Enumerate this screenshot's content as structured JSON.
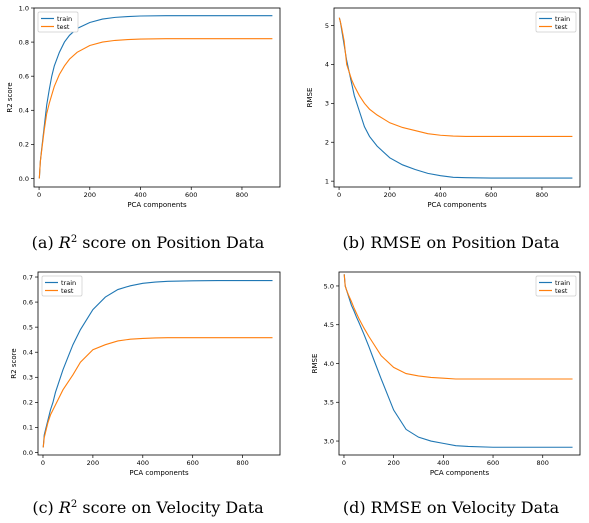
{
  "chart_data": [
    {
      "type": "line",
      "caption": {
        "prefix": "(a)",
        "italic": "R",
        "sup": "2",
        "rest": "score on Position Data"
      },
      "xlabel": "PCA components",
      "ylabel": "R2 score",
      "xlim": [
        -20,
        950
      ],
      "ylim": [
        -0.05,
        1.0
      ],
      "xticks": [
        0,
        200,
        400,
        600,
        800
      ],
      "yticks": [
        0.0,
        0.2,
        0.4,
        0.6,
        0.8,
        1.0
      ],
      "ytick_labels": [
        "0.0",
        "0.2",
        "0.4",
        "0.6",
        "0.8",
        "1.0"
      ],
      "legend": "top-left",
      "series": [
        {
          "name": "train",
          "color": "#1f77b4",
          "x": [
            1,
            5,
            10,
            20,
            30,
            40,
            50,
            60,
            80,
            100,
            120,
            150,
            200,
            250,
            300,
            350,
            400,
            500,
            600,
            700,
            800,
            920
          ],
          "y": [
            0.0,
            0.1,
            0.17,
            0.3,
            0.43,
            0.52,
            0.6,
            0.66,
            0.74,
            0.8,
            0.84,
            0.88,
            0.915,
            0.935,
            0.945,
            0.95,
            0.953,
            0.955,
            0.955,
            0.955,
            0.955,
            0.955
          ]
        },
        {
          "name": "test",
          "color": "#ff7f0e",
          "x": [
            1,
            5,
            10,
            20,
            30,
            40,
            50,
            60,
            80,
            100,
            120,
            150,
            200,
            250,
            300,
            350,
            400,
            500,
            600,
            700,
            800,
            920
          ],
          "y": [
            0.0,
            0.1,
            0.16,
            0.28,
            0.38,
            0.44,
            0.49,
            0.54,
            0.61,
            0.66,
            0.7,
            0.74,
            0.78,
            0.8,
            0.81,
            0.815,
            0.818,
            0.82,
            0.82,
            0.82,
            0.82,
            0.82
          ]
        }
      ]
    },
    {
      "type": "line",
      "caption": {
        "prefix": "(b)",
        "italic": "",
        "sup": "",
        "rest": "RMSE on Position Data"
      },
      "xlabel": "PCA components",
      "ylabel": "RMSE",
      "xlim": [
        -20,
        950
      ],
      "ylim": [
        0.85,
        5.45
      ],
      "xticks": [
        0,
        200,
        400,
        600,
        800
      ],
      "yticks": [
        1,
        2,
        3,
        4,
        5
      ],
      "ytick_labels": [
        "1",
        "2",
        "3",
        "4",
        "5"
      ],
      "legend": "top-right",
      "series": [
        {
          "name": "train",
          "color": "#1f77b4",
          "x": [
            1,
            5,
            10,
            20,
            30,
            40,
            50,
            60,
            80,
            100,
            120,
            150,
            200,
            250,
            300,
            350,
            400,
            450,
            500,
            600,
            700,
            800,
            920
          ],
          "y": [
            5.2,
            5.1,
            4.9,
            4.5,
            4.1,
            3.8,
            3.5,
            3.2,
            2.8,
            2.4,
            2.15,
            1.9,
            1.6,
            1.42,
            1.3,
            1.2,
            1.14,
            1.1,
            1.09,
            1.08,
            1.08,
            1.08,
            1.08
          ]
        },
        {
          "name": "test",
          "color": "#ff7f0e",
          "x": [
            1,
            5,
            10,
            20,
            30,
            40,
            50,
            60,
            80,
            100,
            120,
            150,
            200,
            250,
            300,
            350,
            400,
            450,
            500,
            600,
            700,
            800,
            920
          ],
          "y": [
            5.2,
            5.1,
            4.95,
            4.6,
            4.0,
            3.8,
            3.6,
            3.45,
            3.2,
            3.0,
            2.85,
            2.7,
            2.5,
            2.38,
            2.3,
            2.22,
            2.18,
            2.16,
            2.15,
            2.15,
            2.15,
            2.15,
            2.15
          ]
        }
      ]
    },
    {
      "type": "line",
      "caption": {
        "prefix": "(c)",
        "italic": "R",
        "sup": "2",
        "rest": "score on Velocity Data"
      },
      "xlabel": "PCA components",
      "ylabel": "R2 score",
      "xlim": [
        -20,
        950
      ],
      "ylim": [
        -0.01,
        0.72
      ],
      "xticks": [
        0,
        200,
        400,
        600,
        800
      ],
      "yticks": [
        0.0,
        0.1,
        0.2,
        0.3,
        0.4,
        0.5,
        0.6,
        0.7
      ],
      "ytick_labels": [
        "0.0",
        "0.1",
        "0.2",
        "0.3",
        "0.4",
        "0.5",
        "0.6",
        "0.7"
      ],
      "legend": "top-left",
      "series": [
        {
          "name": "train",
          "color": "#1f77b4",
          "x": [
            1,
            5,
            10,
            20,
            30,
            40,
            50,
            60,
            80,
            100,
            120,
            150,
            200,
            250,
            300,
            350,
            400,
            450,
            500,
            600,
            700,
            800,
            920
          ],
          "y": [
            0.02,
            0.07,
            0.09,
            0.13,
            0.17,
            0.2,
            0.24,
            0.27,
            0.33,
            0.38,
            0.43,
            0.49,
            0.57,
            0.62,
            0.65,
            0.665,
            0.675,
            0.68,
            0.683,
            0.685,
            0.686,
            0.686,
            0.686
          ]
        },
        {
          "name": "test",
          "color": "#ff7f0e",
          "x": [
            1,
            5,
            10,
            20,
            30,
            40,
            50,
            60,
            80,
            100,
            120,
            150,
            200,
            250,
            300,
            350,
            400,
            450,
            500,
            600,
            700,
            800,
            920
          ],
          "y": [
            0.02,
            0.06,
            0.08,
            0.12,
            0.15,
            0.17,
            0.19,
            0.21,
            0.25,
            0.28,
            0.31,
            0.36,
            0.41,
            0.43,
            0.445,
            0.452,
            0.455,
            0.457,
            0.458,
            0.458,
            0.458,
            0.458,
            0.458
          ]
        }
      ]
    },
    {
      "type": "line",
      "caption": {
        "prefix": "(d)",
        "italic": "",
        "sup": "",
        "rest": "RMSE on Velocity Data"
      },
      "xlabel": "PCA components",
      "ylabel": "RMSE",
      "xlim": [
        -20,
        950
      ],
      "ylim": [
        2.82,
        5.18
      ],
      "xticks": [
        0,
        200,
        400,
        600,
        800
      ],
      "yticks": [
        3.0,
        3.5,
        4.0,
        4.5,
        5.0
      ],
      "ytick_labels": [
        "3.0",
        "3.5",
        "4.0",
        "4.5",
        "5.0"
      ],
      "legend": "top-right",
      "series": [
        {
          "name": "train",
          "color": "#1f77b4",
          "x": [
            1,
            5,
            10,
            20,
            30,
            40,
            50,
            60,
            80,
            100,
            120,
            150,
            200,
            250,
            300,
            350,
            400,
            450,
            500,
            600,
            700,
            800,
            920
          ],
          "y": [
            5.15,
            5.0,
            4.95,
            4.85,
            4.75,
            4.68,
            4.6,
            4.53,
            4.38,
            4.22,
            4.05,
            3.8,
            3.4,
            3.15,
            3.05,
            3.0,
            2.97,
            2.94,
            2.93,
            2.92,
            2.92,
            2.92,
            2.92
          ]
        },
        {
          "name": "test",
          "color": "#ff7f0e",
          "x": [
            1,
            5,
            10,
            20,
            30,
            40,
            50,
            60,
            80,
            100,
            120,
            150,
            200,
            250,
            300,
            350,
            400,
            450,
            500,
            600,
            700,
            800,
            920
          ],
          "y": [
            5.15,
            5.0,
            4.95,
            4.87,
            4.8,
            4.72,
            4.65,
            4.58,
            4.46,
            4.35,
            4.25,
            4.1,
            3.95,
            3.87,
            3.84,
            3.82,
            3.81,
            3.8,
            3.8,
            3.8,
            3.8,
            3.8,
            3.8
          ]
        }
      ]
    }
  ]
}
